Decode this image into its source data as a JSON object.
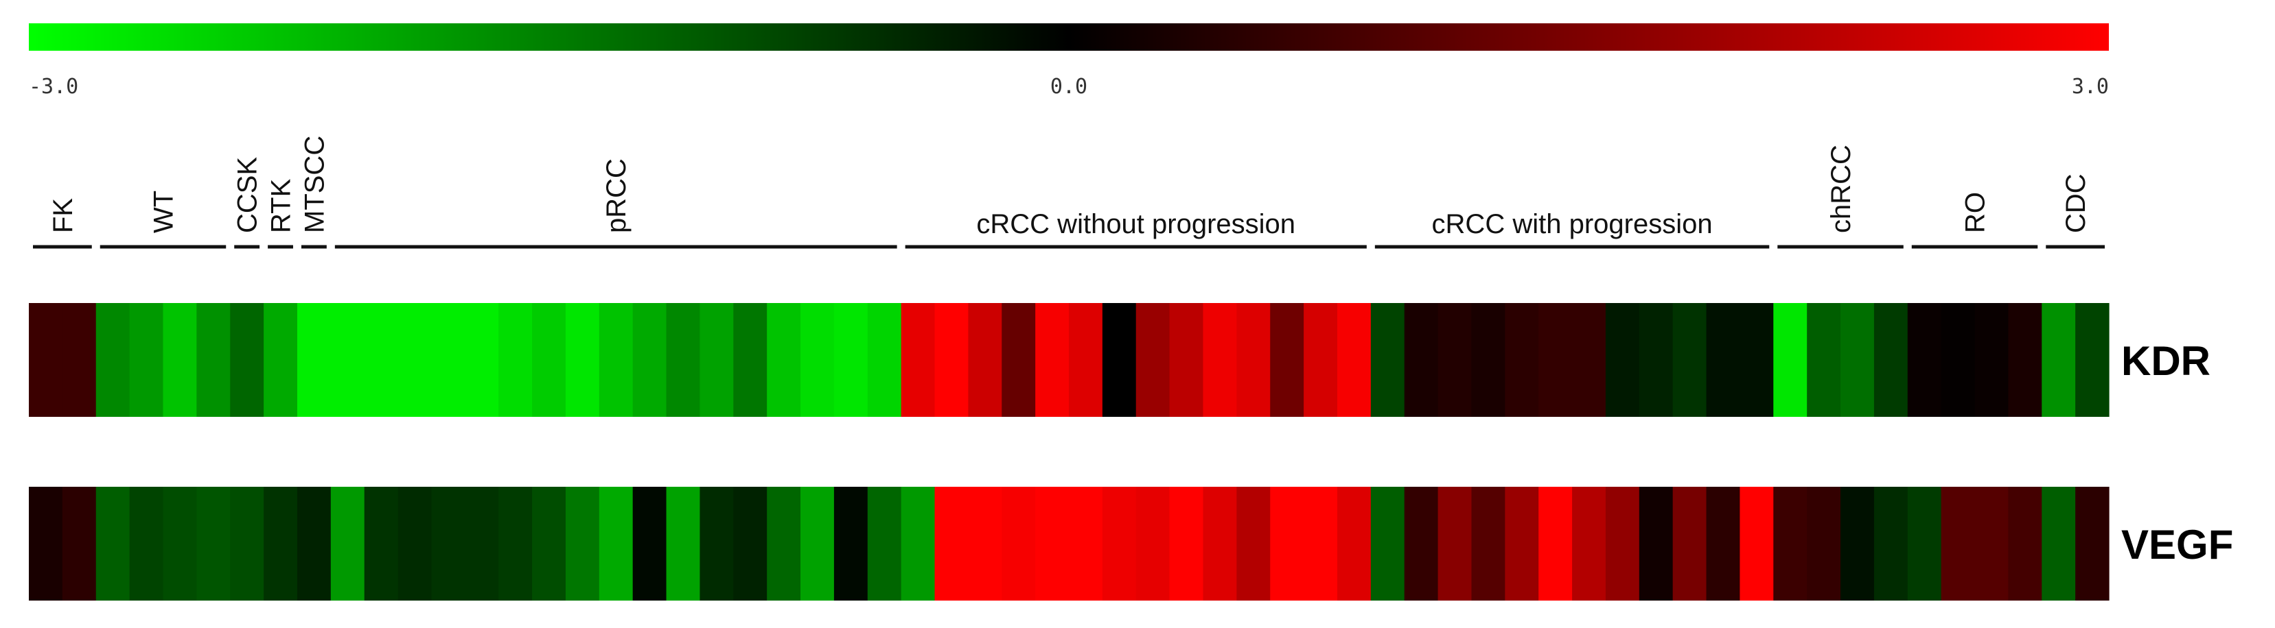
{
  "chart_data": {
    "type": "heatmap",
    "title": "",
    "color_scale": {
      "min_label": "-3.0",
      "mid_label": "0.0",
      "max_label": "3.0",
      "min": -3.0,
      "mid": 0.0,
      "max": 3.0,
      "colors": {
        "low": "#00ff00",
        "mid": "#000000",
        "high": "#ff0000"
      }
    },
    "groups": [
      {
        "name": "FK",
        "count": 2
      },
      {
        "name": "WT",
        "count": 4
      },
      {
        "name": "CCSK",
        "count": 1
      },
      {
        "name": "RTK",
        "count": 1
      },
      {
        "name": "MTSCC",
        "count": 1
      },
      {
        "name": "pRCC",
        "count": 17
      },
      {
        "name": "cRCC without progression",
        "count": 14
      },
      {
        "name": "cRCC with progression",
        "count": 12
      },
      {
        "name": "chRCC",
        "count": 4
      },
      {
        "name": "RO",
        "count": 4
      },
      {
        "name": "CDC",
        "count": 2
      }
    ],
    "rows": [
      {
        "name": "KDR",
        "values": [
          0.7,
          0.7,
          -1.6,
          -1.8,
          -2.3,
          -1.7,
          -1.2,
          -2.0,
          -2.8,
          -2.8,
          -2.8,
          -2.8,
          -2.8,
          -2.8,
          -2.6,
          -2.4,
          -2.7,
          -2.3,
          -2.0,
          -1.6,
          -1.9,
          -1.4,
          -2.3,
          -2.6,
          -2.7,
          -2.5,
          2.7,
          3.0,
          2.4,
          1.2,
          2.9,
          2.6,
          0.0,
          1.8,
          2.2,
          2.8,
          2.6,
          1.3,
          2.5,
          2.9,
          -0.8,
          0.3,
          0.4,
          0.3,
          0.5,
          0.6,
          0.6,
          -0.3,
          -0.4,
          -0.6,
          -0.2,
          -0.2,
          -2.7,
          -1.1,
          -1.3,
          -0.7,
          0.1,
          0.05,
          0.1,
          0.3,
          -1.7,
          -0.8
        ]
      },
      {
        "name": "VEGF",
        "values": [
          0.3,
          0.5,
          -1.1,
          -0.8,
          -0.9,
          -1.0,
          -0.9,
          -0.6,
          -0.4,
          -1.8,
          -0.6,
          -0.5,
          -0.6,
          -0.6,
          -0.7,
          -0.9,
          -1.4,
          -2.0,
          -0.1,
          -1.9,
          -0.5,
          -0.4,
          -1.2,
          -1.9,
          -0.1,
          -1.2,
          -1.8,
          3.0,
          3.0,
          2.9,
          3.0,
          3.0,
          2.8,
          2.7,
          3.0,
          2.6,
          2.1,
          3.0,
          3.0,
          2.6,
          -1.1,
          0.6,
          1.6,
          1.0,
          1.8,
          3.0,
          2.1,
          1.7,
          0.2,
          1.4,
          0.5,
          3.0,
          0.7,
          0.6,
          -0.2,
          -0.5,
          -0.7,
          1.0,
          1.0,
          0.8,
          -1.1,
          0.5
        ]
      }
    ]
  }
}
